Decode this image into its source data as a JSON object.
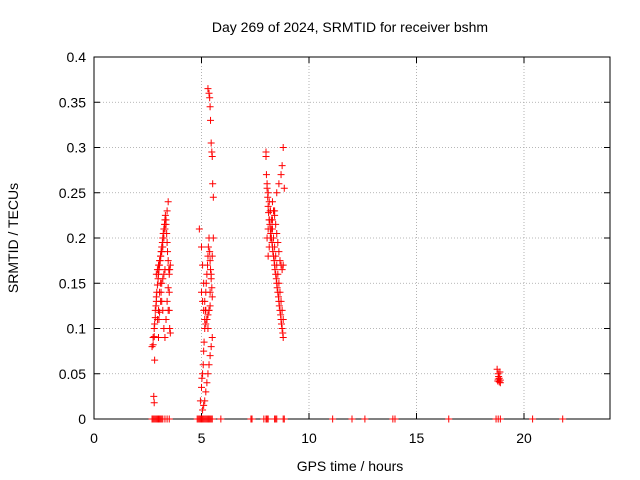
{
  "chart_data": {
    "type": "scatter",
    "title": "Day 269 of 2024, SRMTID for receiver bshm",
    "xlabel": "GPS time / hours",
    "ylabel": "SRMTID / TECUs",
    "xlim": [
      0,
      24
    ],
    "ylim": [
      0,
      0.4
    ],
    "xticks": [
      0,
      5,
      10,
      15,
      20
    ],
    "xtick_labels": [
      "0",
      "5",
      "10",
      "15",
      "20"
    ],
    "yticks": [
      0,
      0.05,
      0.1,
      0.15,
      0.2,
      0.25,
      0.3,
      0.35,
      0.4
    ],
    "ytick_labels": [
      "0",
      "0.05",
      "0.1",
      "0.15",
      "0.2",
      "0.25",
      "0.3",
      "0.35",
      "0.4"
    ],
    "grid": true,
    "marker": "+",
    "color": "#ff0000",
    "series": [
      {
        "name": "SRMTID",
        "x": [
          2.7,
          2.75,
          2.8,
          2.85,
          2.9,
          2.95,
          3.0,
          3.05,
          3.1,
          3.15,
          3.2,
          3.25,
          3.3,
          3.35,
          3.4,
          3.45,
          3.5,
          2.75,
          2.8,
          2.82,
          2.85,
          2.88,
          2.9,
          2.92,
          2.95,
          2.98,
          3.0,
          3.02,
          3.05,
          3.08,
          3.1,
          3.12,
          3.15,
          3.18,
          3.2,
          3.22,
          3.25,
          3.28,
          3.3,
          3.32,
          3.35,
          3.38,
          3.4,
          3.42,
          3.45,
          3.48,
          3.5,
          3.52,
          3.55,
          2.9,
          2.95,
          3.0,
          3.05,
          3.1,
          3.15,
          3.2,
          3.25,
          3.3,
          3.35,
          3.4,
          3.45,
          2.78,
          2.8,
          2.82,
          3.0,
          3.02,
          3.05,
          3.1,
          3.12,
          3.15,
          3.2,
          3.25,
          3.3,
          3.45,
          3.5,
          3.52,
          3.55,
          4.9,
          5.0,
          5.05,
          5.1,
          5.15,
          5.2,
          5.25,
          5.3,
          5.35,
          5.4,
          5.45,
          5.5,
          5.55,
          4.95,
          5.0,
          5.02,
          5.05,
          5.08,
          5.1,
          5.12,
          5.15,
          5.18,
          5.2,
          5.22,
          5.25,
          5.28,
          5.3,
          5.32,
          5.35,
          5.38,
          5.4,
          5.42,
          5.45,
          5.48,
          5.5,
          5.05,
          5.1,
          5.15,
          5.2,
          5.25,
          5.3,
          5.35,
          5.4,
          5.45,
          5.5,
          5.3,
          5.35,
          5.38,
          5.4,
          5.42,
          5.45,
          5.48,
          5.5,
          5.52,
          5.55,
          5.0,
          5.05,
          5.1,
          5.15,
          5.2,
          5.25,
          5.3,
          5.35,
          5.4,
          8.0,
          8.05,
          8.1,
          8.15,
          8.2,
          8.25,
          8.3,
          8.35,
          8.4,
          8.45,
          8.5,
          8.55,
          8.6,
          8.65,
          8.7,
          8.75,
          8.8,
          8.0,
          8.02,
          8.05,
          8.08,
          8.1,
          8.12,
          8.15,
          8.18,
          8.2,
          8.22,
          8.25,
          8.28,
          8.3,
          8.32,
          8.35,
          8.38,
          8.4,
          8.42,
          8.45,
          8.48,
          8.5,
          8.52,
          8.55,
          8.58,
          8.6,
          8.62,
          8.65,
          8.68,
          8.7,
          8.72,
          8.75,
          8.78,
          8.8,
          8.1,
          8.15,
          8.2,
          8.25,
          8.3,
          8.35,
          8.4,
          8.45,
          8.5,
          8.55,
          8.6,
          8.65,
          8.7,
          8.75,
          8.8,
          8.05,
          8.1,
          8.15,
          8.2,
          8.3,
          8.4,
          8.5,
          8.6,
          8.7,
          8.75,
          8.8,
          8.85,
          18.75,
          18.8,
          18.85,
          18.9,
          18.78,
          18.82,
          18.88,
          18.9,
          18.85,
          18.8,
          2.7,
          2.75,
          2.8,
          2.85,
          2.9,
          2.95,
          3.0,
          3.05,
          3.1,
          3.15,
          3.2,
          3.3,
          3.4,
          3.5,
          4.8,
          4.85,
          4.9,
          4.95,
          5.0,
          5.05,
          5.1,
          5.15,
          5.2,
          5.25,
          5.3,
          5.35,
          5.4,
          5.45,
          5.5,
          5.9,
          7.3,
          7.35,
          7.9,
          8.0,
          8.05,
          8.1,
          8.4,
          8.45,
          8.5,
          8.8,
          8.85,
          11.1,
          12.0,
          12.6,
          13.9,
          14.0,
          16.5,
          18.7,
          18.8,
          18.9,
          20.4,
          21.8
        ],
        "y": [
          0.08,
          0.09,
          0.1,
          0.12,
          0.13,
          0.11,
          0.12,
          0.14,
          0.15,
          0.13,
          0.12,
          0.1,
          0.09,
          0.11,
          0.13,
          0.12,
          0.14,
          0.082,
          0.091,
          0.105,
          0.112,
          0.125,
          0.135,
          0.14,
          0.148,
          0.155,
          0.16,
          0.165,
          0.17,
          0.175,
          0.18,
          0.185,
          0.19,
          0.195,
          0.2,
          0.205,
          0.21,
          0.215,
          0.22,
          0.225,
          0.215,
          0.205,
          0.195,
          0.185,
          0.175,
          0.165,
          0.16,
          0.165,
          0.17,
          0.16,
          0.165,
          0.17,
          0.175,
          0.18,
          0.185,
          0.19,
          0.2,
          0.21,
          0.22,
          0.23,
          0.24,
          0.025,
          0.018,
          0.065,
          0.09,
          0.11,
          0.118,
          0.13,
          0.14,
          0.15,
          0.155,
          0.16,
          0.165,
          0.145,
          0.12,
          0.1,
          0.095,
          0.21,
          0.19,
          0.17,
          0.15,
          0.13,
          0.12,
          0.11,
          0.1,
          0.12,
          0.14,
          0.16,
          0.18,
          0.2,
          0.02,
          0.035,
          0.045,
          0.05,
          0.06,
          0.075,
          0.085,
          0.1,
          0.12,
          0.14,
          0.15,
          0.16,
          0.17,
          0.18,
          0.19,
          0.2,
          0.185,
          0.175,
          0.165,
          0.155,
          0.145,
          0.135,
          0.01,
          0.015,
          0.02,
          0.03,
          0.04,
          0.05,
          0.06,
          0.07,
          0.08,
          0.09,
          0.365,
          0.36,
          0.355,
          0.345,
          0.33,
          0.305,
          0.295,
          0.29,
          0.26,
          0.245,
          0.14,
          0.13,
          0.12,
          0.11,
          0.105,
          0.11,
          0.115,
          0.12,
          0.125,
          0.29,
          0.26,
          0.25,
          0.24,
          0.23,
          0.22,
          0.21,
          0.2,
          0.19,
          0.18,
          0.17,
          0.16,
          0.15,
          0.14,
          0.13,
          0.12,
          0.11,
          0.295,
          0.27,
          0.255,
          0.245,
          0.235,
          0.228,
          0.22,
          0.215,
          0.21,
          0.205,
          0.2,
          0.195,
          0.19,
          0.185,
          0.18,
          0.175,
          0.17,
          0.165,
          0.16,
          0.155,
          0.15,
          0.145,
          0.14,
          0.135,
          0.13,
          0.125,
          0.12,
          0.115,
          0.11,
          0.105,
          0.1,
          0.095,
          0.09,
          0.18,
          0.19,
          0.2,
          0.21,
          0.22,
          0.23,
          0.225,
          0.215,
          0.205,
          0.195,
          0.185,
          0.175,
          0.17,
          0.165,
          0.17,
          0.2,
          0.21,
          0.22,
          0.23,
          0.24,
          0.23,
          0.25,
          0.26,
          0.27,
          0.28,
          0.3,
          0.255,
          0.055,
          0.05,
          0.045,
          0.04,
          0.042,
          0.047,
          0.052,
          0.043,
          0.041,
          0.044,
          0,
          0,
          0,
          0,
          0,
          0,
          0,
          0,
          0,
          0,
          0,
          0,
          0,
          0,
          0,
          0,
          0,
          0,
          0,
          0,
          0,
          0,
          0,
          0,
          0,
          0,
          0,
          0,
          0,
          0,
          0,
          0,
          0,
          0,
          0,
          0,
          0,
          0,
          0,
          0,
          0,
          0,
          0,
          0,
          0,
          0,
          0,
          0,
          0,
          0,
          0,
          0
        ]
      }
    ]
  }
}
